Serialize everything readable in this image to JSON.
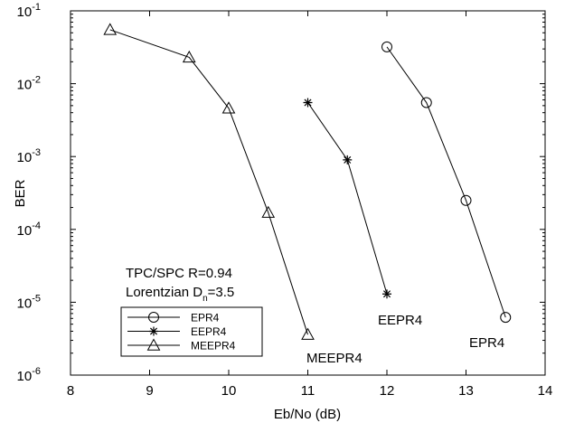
{
  "chart_data": {
    "type": "line",
    "xlabel": "Eb/No (dB)",
    "ylabel": "BER",
    "xlim": [
      8,
      14
    ],
    "ylim": [
      1e-06,
      0.1
    ],
    "yscale": "log",
    "grid": false,
    "legend_position": "bottom-left",
    "xticks": [
      "8",
      "9",
      "10",
      "11",
      "12",
      "13",
      "14"
    ],
    "yticks": [
      {
        "base": "10",
        "exp": "-1"
      },
      {
        "base": "10",
        "exp": "-2"
      },
      {
        "base": "10",
        "exp": "-3"
      },
      {
        "base": "10",
        "exp": "-4"
      },
      {
        "base": "10",
        "exp": "-5"
      },
      {
        "base": "10",
        "exp": "-6"
      }
    ],
    "series": [
      {
        "name": "EPR4",
        "marker": "circle",
        "x": [
          12,
          12.5,
          13,
          13.5
        ],
        "y": [
          0.032,
          0.0055,
          0.00025,
          6.2e-06
        ]
      },
      {
        "name": "EEPR4",
        "marker": "star",
        "x": [
          11,
          11.5,
          12
        ],
        "y": [
          0.0055,
          0.0009,
          1.3e-05
        ]
      },
      {
        "name": "MEEPR4",
        "marker": "triangle",
        "x": [
          8.5,
          9.5,
          10,
          10.5,
          11
        ],
        "y": [
          0.055,
          0.023,
          0.0046,
          0.00017,
          3.6e-06
        ]
      }
    ],
    "annotations": {
      "line1": "TPC/SPC R=0.94",
      "line2_pre": "Lorentzian D",
      "line2_sub": "n",
      "line2_post": "=3.5",
      "label_epr4": "EPR4",
      "label_eepr4": "EEPR4",
      "label_meepr4": "MEEPR4"
    },
    "colors": {
      "line": "#000000",
      "background": "#ffffff"
    }
  }
}
